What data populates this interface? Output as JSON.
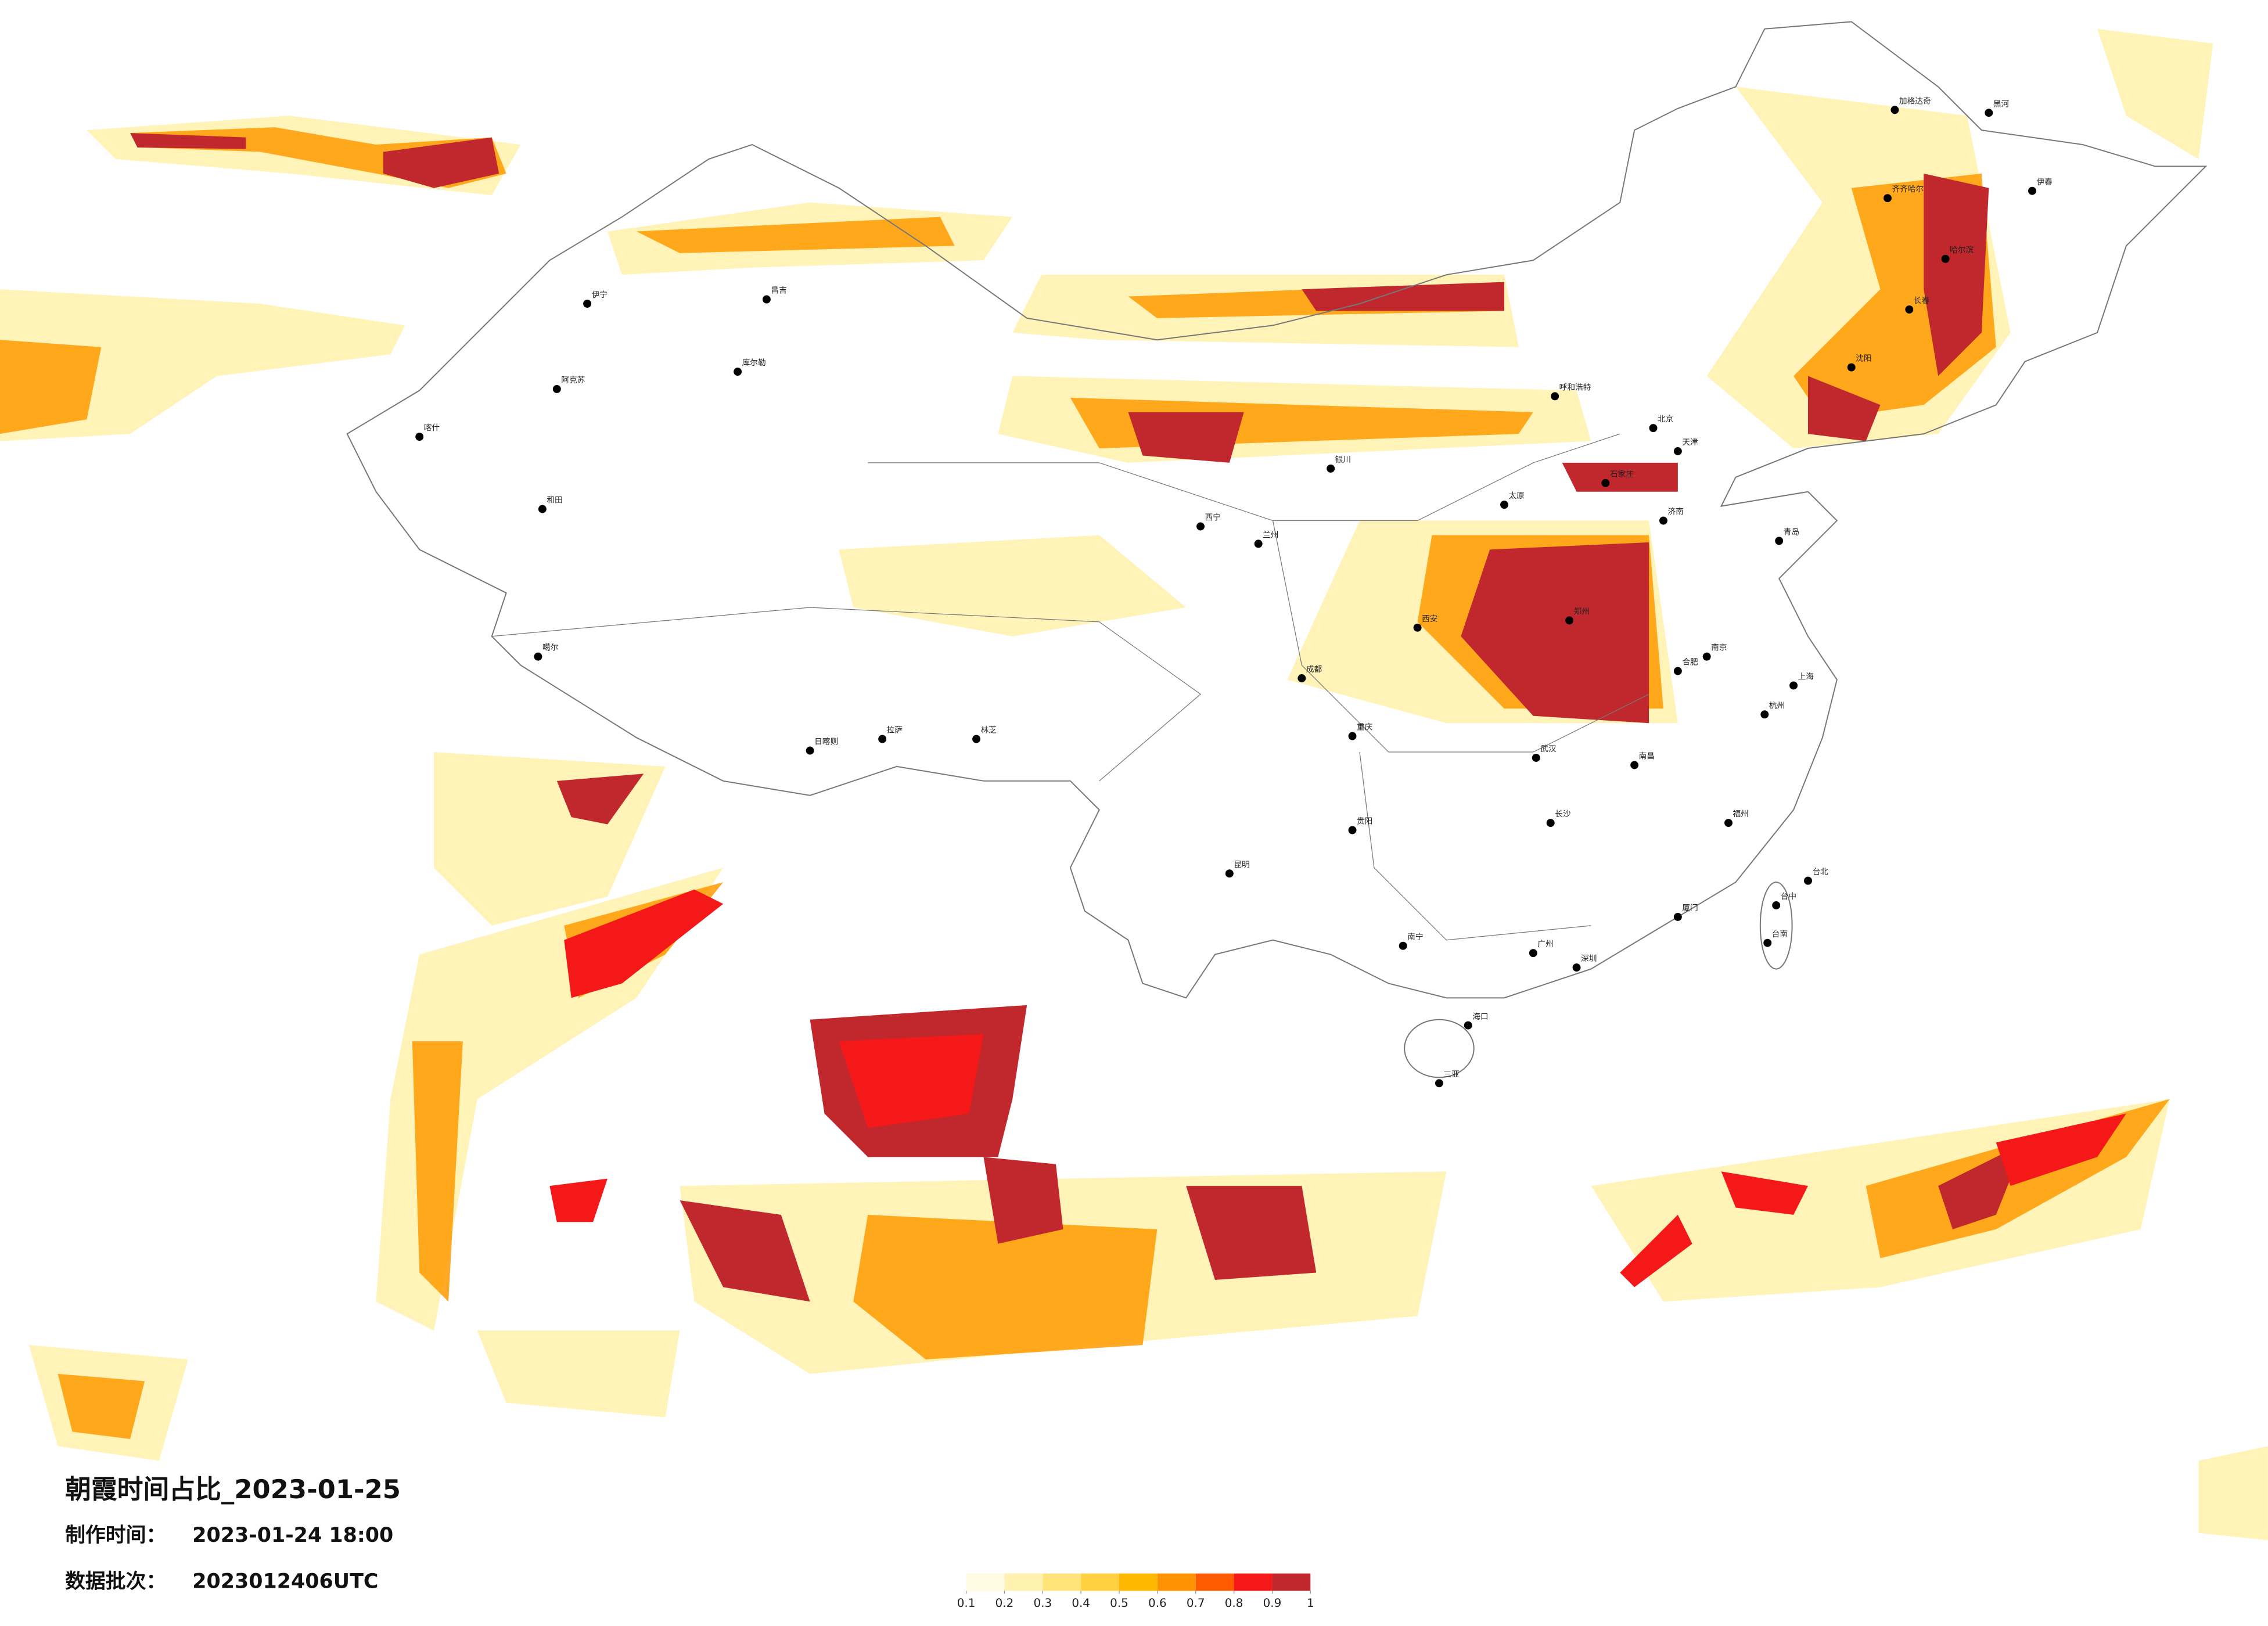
{
  "title": "朝霞时间占比_2023-01-25",
  "made_label": "制作时间：",
  "made_time": "2023-01-24 18:00",
  "batch_label": "数据批次：",
  "batch": "2023012406UTC",
  "colorbar": {
    "ticks": [
      0.1,
      0.2,
      0.3,
      0.4,
      0.5,
      0.6,
      0.7,
      0.8,
      0.9,
      1
    ],
    "colors": [
      "#fffbe3",
      "#fff2b0",
      "#ffe47a",
      "#ffd040",
      "#ffb800",
      "#ff9200",
      "#ff5a00",
      "#f51818",
      "#c0282d"
    ]
  },
  "cities": [
    "伊宁",
    "昌吉",
    "库尔勒",
    "阿克苏",
    "和田",
    "喀什",
    "噶尔",
    "日喀则",
    "拉萨",
    "林芝",
    "西宁",
    "呼和浩特",
    "北京",
    "天津",
    "济南",
    "郑州",
    "武汉",
    "长沙",
    "南昌",
    "贵阳",
    "昆明",
    "南宁",
    "海口",
    "三亚",
    "台北",
    "台中",
    "台南",
    "成都",
    "重庆",
    "西安",
    "广州",
    "深圳",
    "厦门",
    "上海",
    "南京",
    "杭州",
    "福州",
    "沈阳",
    "长春",
    "哈尔滨",
    "齐齐哈尔",
    "加格达奇",
    "黑河",
    "伊春",
    "太原",
    "石家庄",
    "兰州",
    "银川",
    "合肥",
    "青岛"
  ]
}
